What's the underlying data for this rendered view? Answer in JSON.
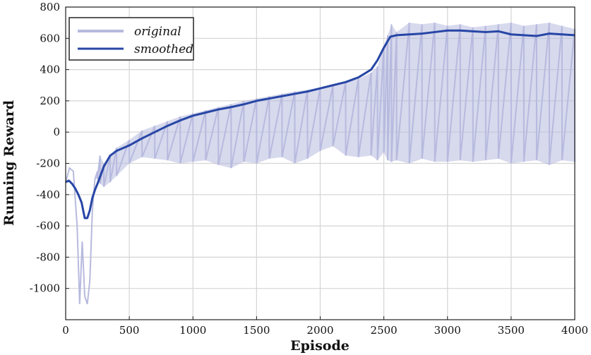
{
  "chart_data": {
    "type": "line",
    "title": "",
    "xlabel": "Episode",
    "ylabel": "Running Reward",
    "xlim": [
      0,
      4000
    ],
    "ylim": [
      -1200,
      800
    ],
    "xticks": [
      0,
      500,
      1000,
      1500,
      2000,
      2500,
      3000,
      3500,
      4000
    ],
    "yticks": [
      -1000,
      -800,
      -600,
      -400,
      -200,
      0,
      200,
      400,
      600,
      800
    ],
    "grid": true,
    "legend_position": "top-left",
    "series": [
      {
        "name": "original",
        "color": "#b7bade",
        "x": [
          0,
          30,
          60,
          90,
          110,
          130,
          150,
          170,
          190,
          210,
          230,
          250,
          270,
          300,
          350,
          400,
          500,
          600,
          700,
          800,
          900,
          1000,
          1100,
          1200,
          1300,
          1400,
          1500,
          1600,
          1700,
          1800,
          1900,
          2000,
          2100,
          2200,
          2300,
          2400,
          2450,
          2500,
          2530,
          2560,
          2600,
          2700,
          2800,
          2900,
          3000,
          3100,
          3200,
          3300,
          3400,
          3500,
          3600,
          3700,
          3800,
          3900,
          4000
        ],
        "y": [
          -320,
          -230,
          -250,
          -600,
          -1100,
          -700,
          -1050,
          -1100,
          -950,
          -500,
          -300,
          -250,
          -150,
          -200,
          -150,
          -100,
          -50,
          10,
          40,
          70,
          100,
          120,
          140,
          160,
          180,
          200,
          215,
          230,
          245,
          260,
          270,
          285,
          300,
          320,
          340,
          380,
          420,
          550,
          620,
          690,
          640,
          700,
          690,
          700,
          680,
          690,
          670,
          680,
          690,
          700,
          680,
          690,
          700,
          680,
          660
        ],
        "lower_y": [
          -320,
          -230,
          -250,
          -600,
          -1100,
          -700,
          -1050,
          -1100,
          -950,
          -500,
          -300,
          -300,
          -330,
          -350,
          -320,
          -280,
          -200,
          -160,
          -170,
          -180,
          -200,
          -190,
          -180,
          -210,
          -230,
          -190,
          -200,
          -170,
          -160,
          -200,
          -170,
          -120,
          -90,
          -150,
          -160,
          -150,
          -180,
          -130,
          -180,
          -190,
          -180,
          -200,
          -170,
          -190,
          -190,
          -180,
          -190,
          -180,
          -170,
          -200,
          -190,
          -180,
          -210,
          -180,
          -190
        ]
      },
      {
        "name": "smoothed",
        "color": "#2746a5",
        "x": [
          0,
          25,
          50,
          75,
          100,
          125,
          150,
          170,
          190,
          210,
          230,
          250,
          300,
          350,
          400,
          500,
          600,
          700,
          800,
          900,
          1000,
          1100,
          1200,
          1300,
          1400,
          1500,
          1600,
          1700,
          1800,
          1900,
          2000,
          2100,
          2200,
          2300,
          2400,
          2450,
          2500,
          2550,
          2600,
          2700,
          2800,
          2900,
          3000,
          3100,
          3200,
          3300,
          3400,
          3500,
          3600,
          3700,
          3800,
          3900,
          4000
        ],
        "y": [
          -320,
          -310,
          -330,
          -360,
          -400,
          -450,
          -550,
          -550,
          -500,
          -420,
          -370,
          -330,
          -220,
          -150,
          -120,
          -85,
          -40,
          0,
          40,
          75,
          105,
          125,
          145,
          160,
          178,
          200,
          215,
          230,
          245,
          260,
          280,
          300,
          320,
          350,
          400,
          460,
          540,
          610,
          620,
          625,
          630,
          640,
          650,
          650,
          645,
          640,
          645,
          625,
          620,
          615,
          630,
          625,
          620
        ]
      }
    ]
  }
}
